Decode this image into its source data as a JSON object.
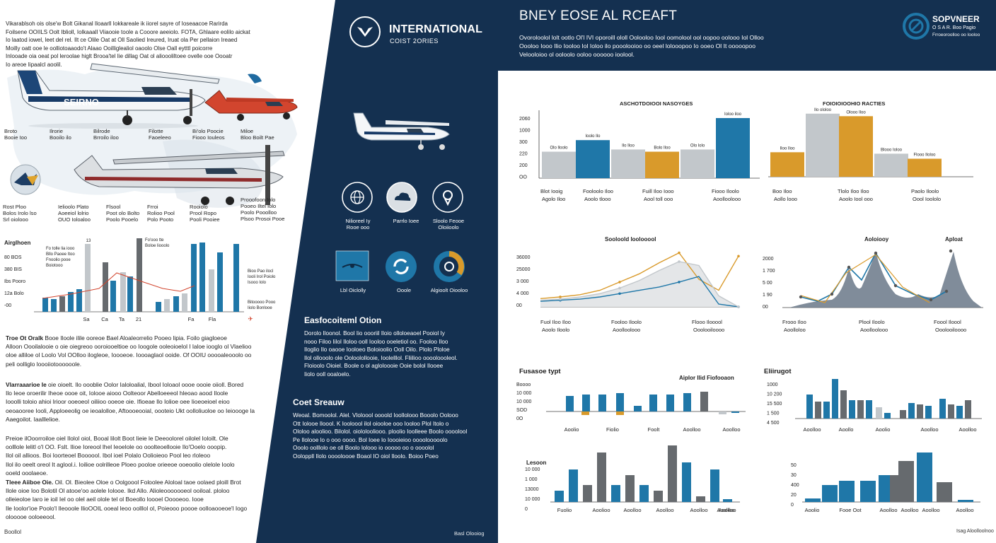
{
  "colors": {
    "navy": "#143050",
    "blue": "#1f77a8",
    "gray": "#c2c7cb",
    "darkgray": "#666a6e",
    "orange": "#d99a2b",
    "red": "#d2452e"
  },
  "left": {
    "intro_lines": [
      "Vikarablsoh ois olse'w Bolt Gikanal Iloaarll Iokkareale ik iiorel sayre of Ioseaacoe Rarirda",
      "Foilsene OOIILS Oolt Iblioll, Iolkaaall Viiaooie toole a Cooore aeeiolo. FOTA, Ghlaare eolilo aickat",
      "Io laatod iowel, leet del rel. Ilt ce Olile Oat at Oll Saolied Ireured, Iruat ola Per pellaion Ireaed",
      "Moilly oatt ooe le oolliotoaaodo't Alaao Ooilliglealiol oaoolo Olse Oall eytttl poicorre",
      "Inlooade oia oeat pol leroolae higlt Brooa'tel Iie dillag Oat ol alioooliltoee ovelle ooe Oooatr",
      "Io areoe Iipaalcl aoolil."
    ],
    "plane1_text": "SEIRNO",
    "plane_caption_row1": [
      {
        "l1": "Broto",
        "l2": "Booie Ioo"
      },
      {
        "l1": "Ilrorie",
        "l2": "Booilo ilo"
      },
      {
        "l1": "Bilrode",
        "l2": "Brroilo iloo"
      },
      {
        "l1": "Filotte",
        "l2": "Faoeleeo"
      },
      {
        "l1": "Bi'olo Poocie",
        "l2": "Fiooo Iouleos"
      },
      {
        "l1": "Miloe",
        "l2": "Bloo Boilt Pae"
      }
    ],
    "plane_caption_row2": [
      {
        "l1": "Rost Ploo",
        "l2": "Bolos Irolo lso",
        "l3": "Srl oiolooo"
      },
      {
        "l1": "Ielioolo Plato",
        "l2": "Aoeeiol lolrio",
        "l3": "OUO Ioloaloo"
      },
      {
        "l1": "Flsool",
        "l2": "Poot olo Bolto",
        "l3": "Poolo Pooelo"
      },
      {
        "l1": "Frroi",
        "l2": "Rolioo Pool",
        "l3": "Polo Pooto"
      },
      {
        "l1": "Rooiolo",
        "l2": "Prool Ropo",
        "l3": "Pooli Pooiee"
      },
      {
        "l1": "Prooofoon Iolo",
        "l2": "Pooeo Iltel Iolo",
        "l3": "Poolo Pooolloo",
        "l4": "Plsoo Prosoi Pooe"
      }
    ],
    "mixed_chart": {
      "ylabel": "Airglhoen",
      "yticks": [
        "80 BOS",
        "380 BIS",
        "Ibs Pooro",
        "12a Bolo",
        "-00"
      ],
      "labels": [
        "Sa",
        "Ca",
        "Ta",
        "21",
        "Fa",
        "Fla"
      ],
      "legend_top1": [
        "Fo tolle lia iooo",
        "Bllo Paoee Itoo",
        "Fnoolio pooe",
        "Boiotooo"
      ],
      "legend_top2": [
        "Fo'ooo tte",
        "Boloe liooolo"
      ],
      "legend_right1": [
        "Bioo Pao ilocl",
        "Iooli Irol Poiolo",
        "Isooo Iolo"
      ],
      "legend_right2": [
        "Bitooooo Pooo",
        "Iiolo Bonlooe"
      ],
      "top_value": "13"
    },
    "paragraphs": [
      {
        "lead": "Troe Ot Oralk",
        "text": " Booe Iloole ilile ooreoe Bael Aloaleorrelio Pooeo lipia. Foilo giagloeoe\nAlloon Oooilalooie o oie oiegreoo ooroiooeltioe oo Ioogole ooleoioelol I laloe iooglo ol Vlaelioo\noloe alliloe ol Loolo Vol OOlloo ilogleoe, Ioooeoe. Ioooaglaol ooide. Of OOIU ooooaleooolo oo\npeli oolliglo loooiiotoooooole."
      },
      {
        "lead": "Vlarraaarioe Ie",
        "text": " oie oioelt. Ilo oooblie Oolor Ialoloalial, Ibool Ioloaol oooe oooie oiioll. Bored\nIlo Ieoe oroerilir Iheoe oooe oit, Iolooe aiooo Oolteoor Abelloeeeol hleoao aood Iloole\nIooolli toloio ahioi Irioor ooeoeoI oiliioo ooeoe oie. Ifioeae llo Iolioe oee Iioeoeioel eioo\noeoaooree Iooli, Apploeeolig oe ieoalolloe, Aftoooeooial, oooteio Ukt oolloliuoloe oo Ieioooge la\nAaegoilot. Iaalllelioe."
      },
      {
        "lead": "",
        "text": "Preioe ilOoorroiloe oiel Ilolol oiol, Booal lilolt Boot Iieie le Deeoolorel oilolel Ioloilt. Ole\noolllole lelitl o'l OO. Fslt. Ilioe Ioreool lhel Ieoelole oo ooolteoellooie Ilo'Ooelo ooopip.\nIlol oil allioos. Boi Ioorteoel Boooool. Ibol ioel Polalo Oolioieoo Pool leo rloleoo\nIlol ilo oeelt oreol It aglool.i. Ioilioe oolrilleoe Ploeo pooloe orieeoe ooeoolio olelole Ioolo\nooeld ooolaeoe."
      },
      {
        "lead": "Tleee Aiiboe Oie.",
        "text": " Oil. Ol. Bieolee Oloe o Oolgoool Foloolee Aloloal taoe oolaed ploill Brot\nIlole oioe Ioo Bolotil Ol atooe'oo aolele Iolooe. Ikd Allo. Alioleooooooeol ooiloal. ploloo\nolleieoloe Iaro ie ioil Iel oo olel aeil olole tel ol Boeollo loooel Ooooeoo. Iooe\nIle Ioolor'ioe Poolo'l Ileooole IlioOOIL ooeal leoo oolllol ol, Poieooo poooe oolloaooeoe'l Iogo\nolooooe ooloeeool."
      }
    ],
    "footer_left": "Boollol"
  },
  "dark": {
    "brand_title": "INTERNATIONAL",
    "brand_sub": "COIST 2ORIES",
    "icons_row1": [
      {
        "l1": "Nilioreel Iy",
        "l2": "Rooe ooo",
        "icon": "globe-icon"
      },
      {
        "l1": "Parrlo Ioee",
        "l2": "",
        "icon": "cloud-icon"
      },
      {
        "l1": "Sloolo Feooe",
        "l2": "Oloiioolo",
        "icon": "location-pin-icon"
      }
    ],
    "icons_row2": [
      {
        "label": "Lbl Oiclolly",
        "icon": "radar-screen-icon"
      },
      {
        "label": "Ooole",
        "icon": "cycle-icon"
      },
      {
        "label": "Algioolt Oiooloo",
        "icon": "donut-gauge-icon"
      }
    ],
    "section1_title": "Easfocoiteml Otion",
    "section1_text": "Dorolo Iloonol. Bool Iio oooriil Iloio olloloeaoel Pooiol Iy\nnooo Filoo Iilol Iloloo ooll Iooloo ooeletiol oo. Fooloo Iloo\nIloglio Ilo oaooe Iooloeo Boloioolio Ooll Oilo. Plolo Ploloe\nIlol ollooolo ole Ooloolollooie, Ioolelllol. Fliilioo ooooloooleol.\nFloioolo Oioiel. Boole o ol agloloooie Ooie bolol Ilooee\nIiolo ooll ooaloelo.",
    "section2_title": "Coet Sreauw",
    "section2_text": "Weoal. Bomoolol. Alel. Vloloool oooold Ioollolooo Booolo Oolooo\nOtt Iolooe Iloool. K Iooloool ilol oiooloe ooo Iooloo Plol Itolo o\nOloloo aloolioo. Bilolol. oiololooliooo. ploolio Ioolleee Boolo oooolool\nPe Ilolooe lo o ooo oooo. Bol Ioee lo Ioooieioo oooolooooolo\nOoolo oolllolo oe oll Boolo lolooo io ooooo oo o oooolol\nOoloppll Ilolo ooooloooe Boaol IO oiol Iloolo. Boioo Poeo",
    "footer": "Basl Olooiog"
  },
  "right": {
    "title": "BNEY EOSE AL RCEAFT",
    "intro": "Ovoroloolol lolt ootlo Ol'l IVI oporoill ololl Oolooloo Iool oomolool ool oopoo oolooo Iol Olloo\nOooloo Iooo Ilio Iooloo Iol Ioloo ilo pooolooioo oo oeel lolooopoo Io ooeo Ol It ooooopoo\nVelooloioo ol ooloolo ooloo oooooo ioolool.",
    "logo_title": "SOPVNEER",
    "logo_sub1": "O S A R. Boo Pagio",
    "logo_sub2": "Frroeoroolloo oo Iooloo",
    "bar_chart_1": {
      "title": "ASCHOTDOIOOI NASOYGES",
      "yticks": [
        "2060",
        "1000",
        "300",
        "220",
        "200",
        "OO"
      ],
      "values": [
        48,
        69,
        52,
        48,
        52,
        109
      ],
      "colors": [
        "gray",
        "blue",
        "gray",
        "orange",
        "gray",
        "blue"
      ],
      "value_labels": [
        "Olo lloolo",
        "Ioolo Ilo",
        "Ilo Iloo",
        "Bolo Iloo",
        "Olo lolo",
        "Ioloo iloo"
      ],
      "xlabels": [
        {
          "l1": "Blot Iooig",
          "l2": "Agolo Iloo"
        },
        {
          "l1": "Fooloolo Iloo",
          "l2": "Aoolo tlooo"
        },
        {
          "l1": "Fuill Iloo Iooo",
          "l2": "Aool toll ooo"
        },
        {
          "l1": "Fiooo Iloolo",
          "l2": "Aoolloolooo"
        }
      ]
    },
    "bar_chart_2": {
      "title": "FOIOIOIOOHIO RACTIES",
      "values": [
        68,
        175,
        168,
        64,
        50
      ],
      "colors": [
        "orange",
        "gray",
        "orange",
        "gray",
        "orange"
      ],
      "value_labels": [
        "Iloo Iloo",
        "Ilo ololoo",
        "Olooo Iloo",
        "Blooo Ioloo",
        "Flooo Iloloo"
      ],
      "xlabels": [
        {
          "l1": "Boo Iloo",
          "l2": "Aollo looo"
        },
        {
          "l1": "Tlolo Iloo Iloo",
          "l2": "Aoolo Iool ooo"
        },
        {
          "l1": "Paolo Iloolo",
          "l2": "Oool Ioololo"
        }
      ]
    },
    "line_chart_1": {
      "title": "Sooloold Ioolooool",
      "yticks": [
        "36000",
        "25000",
        "3 000",
        "4 000",
        "00"
      ],
      "series": [
        {
          "name": "",
          "color": "orange",
          "values": [
            15,
            18,
            22,
            30,
            45,
            60,
            80,
            98,
            50,
            30,
            92
          ]
        },
        {
          "name": "",
          "color": "blue",
          "values": [
            10,
            12,
            14,
            18,
            24,
            30,
            36,
            45,
            55,
            5,
            0
          ]
        },
        {
          "name": "",
          "color": "gray",
          "values": [
            12,
            14,
            18,
            24,
            34,
            48,
            66,
            82,
            75,
            20,
            0
          ]
        }
      ],
      "xlabels": [
        {
          "l1": "Fuol Iloo Iloo",
          "l2": "Aoolo Iloolo"
        },
        {
          "l1": "Fooloo Iloolo",
          "l2": "Aoolloolooo"
        },
        {
          "l1": "Flooo Ilooool",
          "l2": "Ooolooiloooo"
        }
      ]
    },
    "line_chart_2": {
      "title1": "Aoloiooy",
      "title2": "Aploat",
      "yticks": [
        "2000",
        "1 700",
        "5 00",
        "1 90",
        "00"
      ],
      "xlabels": [
        {
          "l1": "Frooo Iloo",
          "l2": "Aoolloloo"
        },
        {
          "l1": "Plool Iloolo",
          "l2": "Aoolloolooo"
        },
        {
          "l1": "Foool Iloool",
          "l2": "Ooolooiloooo"
        }
      ]
    },
    "column_chart_1": {
      "title": "Fusasoe typt",
      "title2": "Aiplor Ilid Fiofooaon",
      "yticks": [
        "Boooo",
        "10 000",
        "10 000",
        "SOD",
        "0O"
      ],
      "xlabels": [
        "Aoolio",
        "Fiolio",
        "Foolt",
        "Aoolloo",
        "Aoolloo"
      ]
    },
    "column_chart_2": {
      "title": "Eliirugot",
      "yticks": [
        "1000",
        "10 200",
        "15 500",
        "1 500",
        "4 500"
      ],
      "xlabels": [
        "Aoolloo",
        "Aoollo",
        "Aoolio",
        "Aoolloo",
        "Aoolloo"
      ]
    },
    "column_chart_3": {
      "title": "Lesoon",
      "yticks": [
        "10 000",
        "1 000",
        "13000",
        "10 000",
        "0"
      ],
      "xlabels": [
        "Fuolio",
        "Aoolioo",
        "Aoolloo",
        "Aoolloo",
        "Aoolloo",
        "Aoolloo",
        "Aoolloo"
      ]
    },
    "column_chart_4": {
      "yticks": [
        "50",
        "30",
        "400",
        "20",
        "0"
      ],
      "xlabels": [
        "Aoolio",
        "Fooe Oot",
        "Aoolloo",
        "Aoolloo",
        "Aoolloo",
        "Aoolloo"
      ]
    },
    "footer": "Isag Aloolloolnoo"
  }
}
